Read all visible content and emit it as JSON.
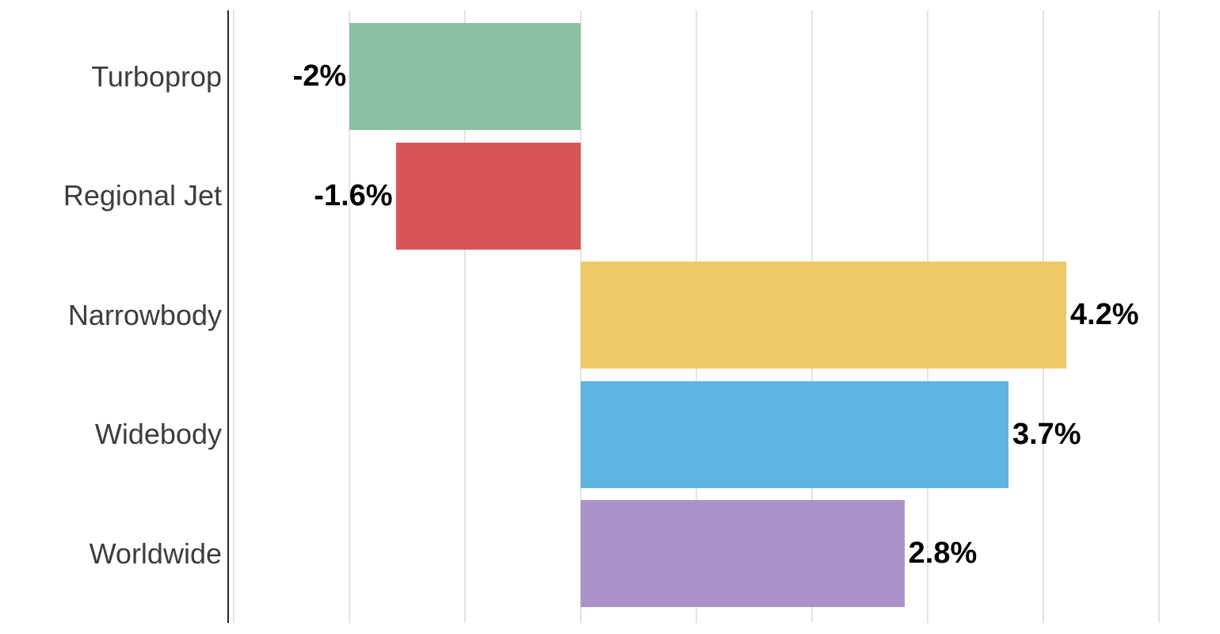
{
  "chart_data": {
    "type": "bar",
    "orientation": "horizontal",
    "title": "",
    "xlabel": "",
    "ylabel": "",
    "categories": [
      "Turboprop",
      "Regional Jet",
      "Narrowbody",
      "Widebody",
      "Worldwide"
    ],
    "values": [
      -2,
      -1.6,
      4.2,
      3.7,
      2.8
    ],
    "value_labels": [
      "-2%",
      "-1.6%",
      "4.2%",
      "3.7%",
      "2.8%"
    ],
    "bar_colors": [
      "#8cc1a4",
      "#d95458",
      "#edc967",
      "#5fb5e2",
      "#aa92c8"
    ],
    "xlim": [
      -3.05,
      5.53
    ],
    "gridline_values": [
      -3,
      -2,
      -1,
      0,
      1,
      2,
      3,
      4,
      5
    ],
    "grid": "vertical-only",
    "legend": "none",
    "background_color": "#ffffff",
    "gridline_color": "#e3e3e3",
    "axis_line_color": "#262626",
    "category_label_color": "#3d3d3d",
    "value_label_color": "#000000"
  }
}
